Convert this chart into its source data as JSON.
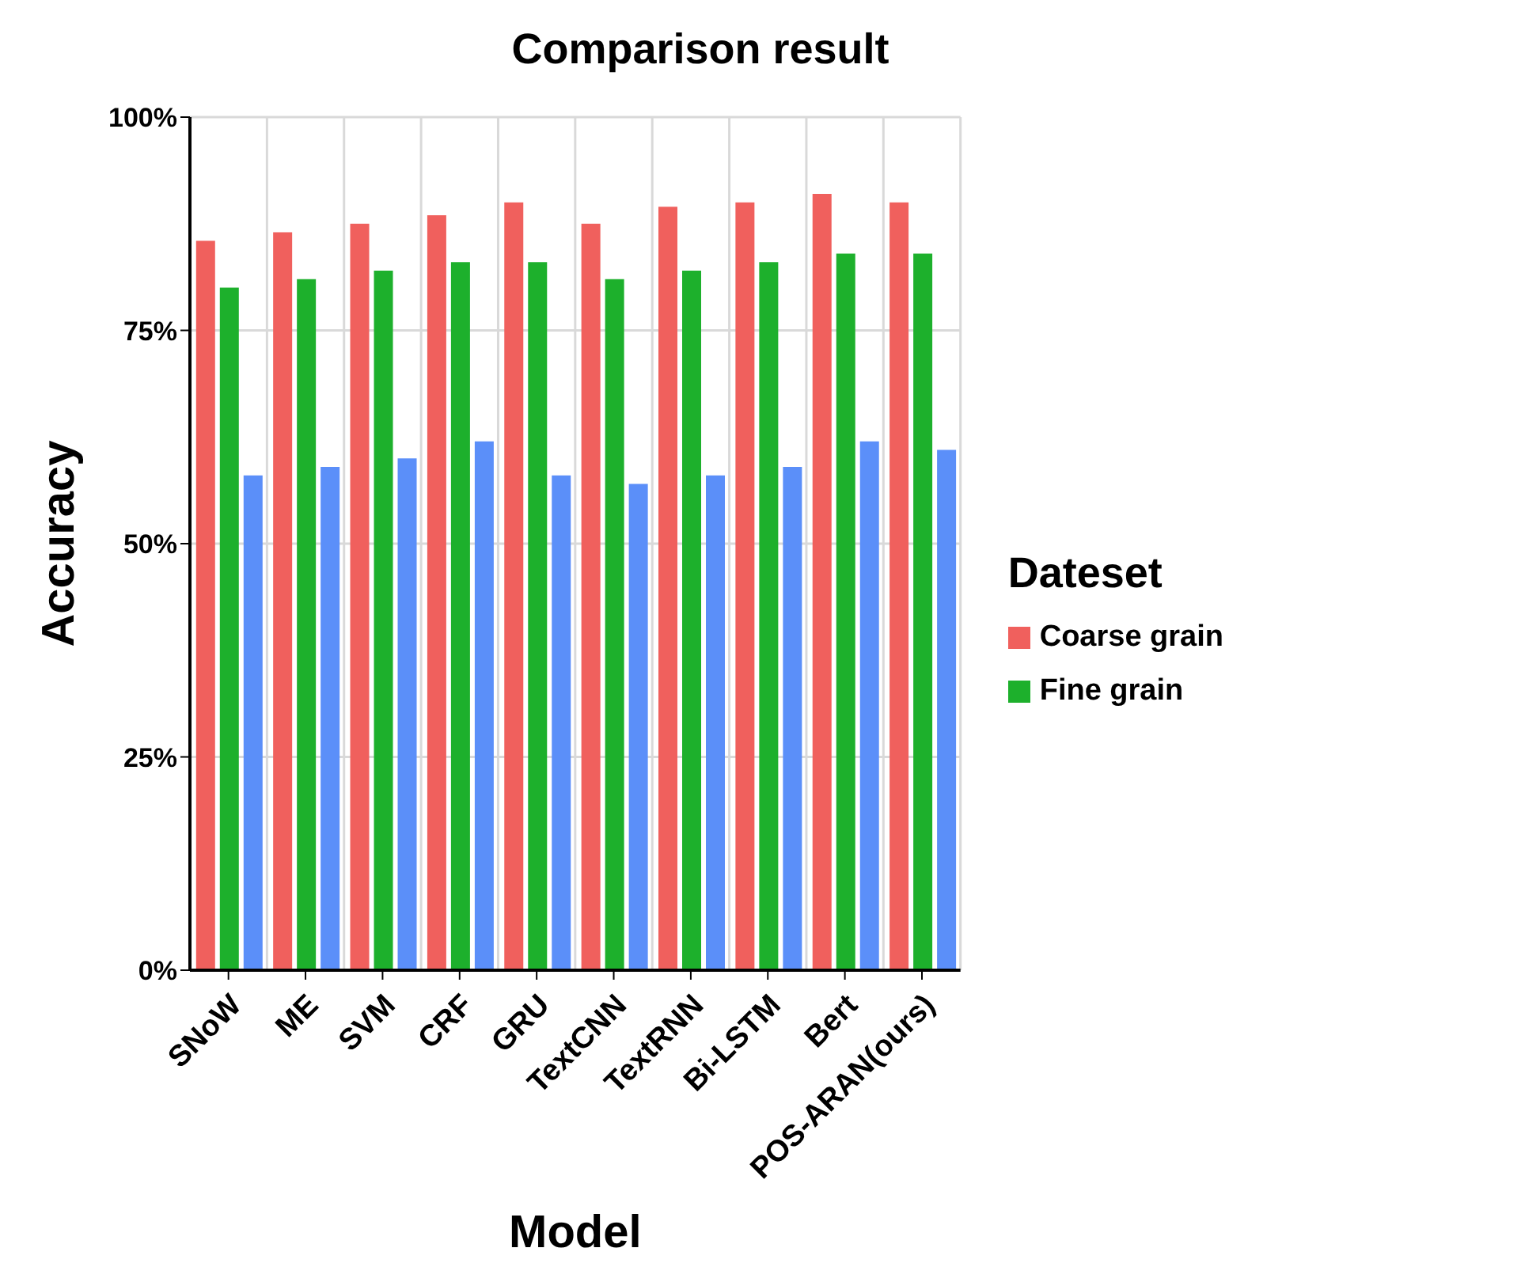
{
  "chart_data": {
    "type": "bar",
    "title": "Comparison result",
    "xlabel": "Model",
    "ylabel": "Accuracy",
    "legend_title": "Dateset",
    "categories": [
      "SNoW",
      "ME",
      "SVM",
      "CRF",
      "GRU",
      "TextCNN",
      "TextRNN",
      "Bi-LSTM",
      "Bert",
      "POS-ARAN(ours)"
    ],
    "series": [
      {
        "name": "Coarse grain",
        "color": "#f0605d",
        "values": [
          85.5,
          86.5,
          87.5,
          88.5,
          90,
          87.5,
          89.5,
          90,
          91,
          90
        ]
      },
      {
        "name": "Fine grain",
        "color": "#1db02c",
        "values": [
          80,
          81,
          82,
          83,
          83,
          81,
          82,
          83,
          84,
          84
        ]
      },
      {
        "color": "#5b8ff9",
        "values": [
          58,
          59,
          60,
          62,
          58,
          57,
          58,
          59,
          62,
          61
        ]
      }
    ],
    "ylim": [
      0,
      100
    ],
    "yticks": [
      {
        "value": 0,
        "label": "0%"
      },
      {
        "value": 25,
        "label": "25%"
      },
      {
        "value": 50,
        "label": "50%"
      },
      {
        "value": 75,
        "label": "75%"
      },
      {
        "value": 100,
        "label": "100%"
      }
    ],
    "grid": true,
    "legend": "right"
  }
}
